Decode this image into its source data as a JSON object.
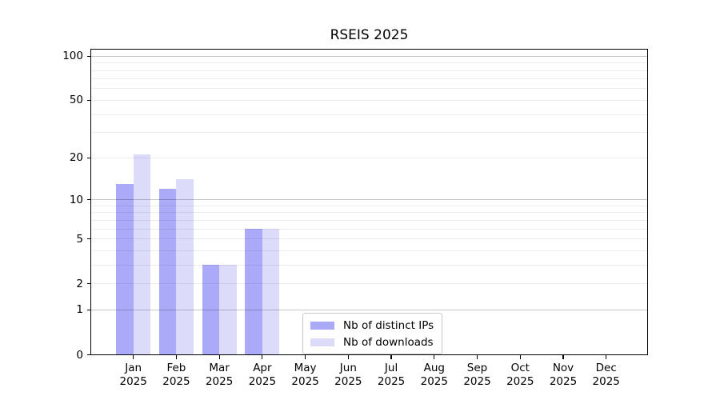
{
  "title": "RSEIS 2025",
  "chart_data": {
    "type": "bar",
    "title": "RSEIS 2025",
    "x": {
      "months": [
        "Jan",
        "Feb",
        "Mar",
        "Apr",
        "May",
        "Jun",
        "Jul",
        "Aug",
        "Sep",
        "Oct",
        "Nov",
        "Dec"
      ],
      "year": "2025"
    },
    "series": [
      {
        "name": "Nb of distinct IPs",
        "color": "#aaaaf8",
        "values": [
          13,
          12,
          3,
          6,
          null,
          null,
          null,
          null,
          null,
          null,
          null,
          null
        ]
      },
      {
        "name": "Nb of downloads",
        "color": "#dcdcfa",
        "values": [
          21,
          14,
          3,
          6,
          null,
          null,
          null,
          null,
          null,
          null,
          null,
          null
        ]
      }
    ],
    "y_axis": {
      "scale": "log1p",
      "tick_labels": [
        0,
        1,
        2,
        5,
        10,
        20,
        50,
        100
      ],
      "major_gridlines": [
        1,
        10,
        100
      ],
      "minor_gridlines": [
        2,
        3,
        4,
        5,
        6,
        7,
        8,
        9,
        20,
        30,
        40,
        50,
        60,
        70,
        80,
        90
      ],
      "range": [
        0,
        112
      ]
    },
    "legend": {
      "position": "lower center",
      "entries": [
        "Nb of distinct IPs",
        "Nb of downloads"
      ]
    },
    "colors": {
      "bar_distinct_ips": "#aaaaf8",
      "bar_downloads": "#dcdcfa",
      "grid_major": "#c7c7c7",
      "grid_minor": "#ececec",
      "axis": "#000000",
      "background": "#ffffff"
    }
  }
}
